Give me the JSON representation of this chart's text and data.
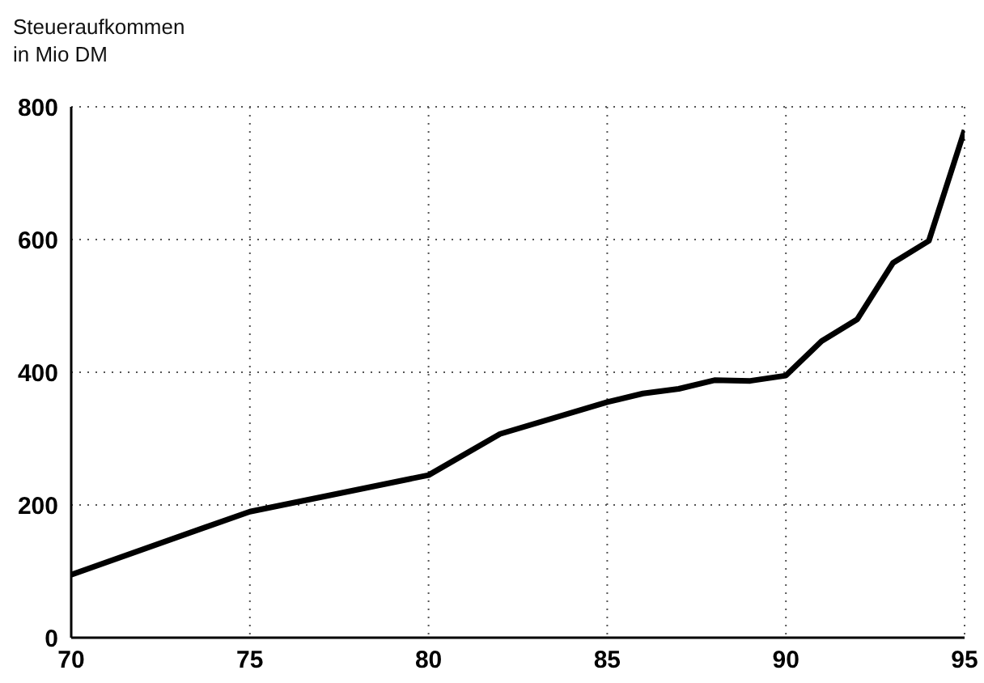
{
  "chart_data": {
    "type": "line",
    "ylabel": "Steueraufkommen\nin Mio DM",
    "x": [
      70,
      75,
      80,
      82,
      85,
      86,
      87,
      88,
      89,
      90,
      91,
      92,
      93,
      94,
      95
    ],
    "series": [
      {
        "color": "#000000",
        "values": [
          95,
          190,
          245,
          307,
          355,
          368,
          375,
          388,
          387,
          395,
          447,
          480,
          565,
          598,
          765
        ]
      }
    ],
    "xlim": [
      70,
      95
    ],
    "xticks": [
      70,
      75,
      80,
      85,
      90,
      95
    ],
    "ylim": [
      0,
      800
    ],
    "yticks": [
      0,
      200,
      400,
      600,
      800
    ],
    "grid": true,
    "marker": "none",
    "line_style": "solid"
  }
}
